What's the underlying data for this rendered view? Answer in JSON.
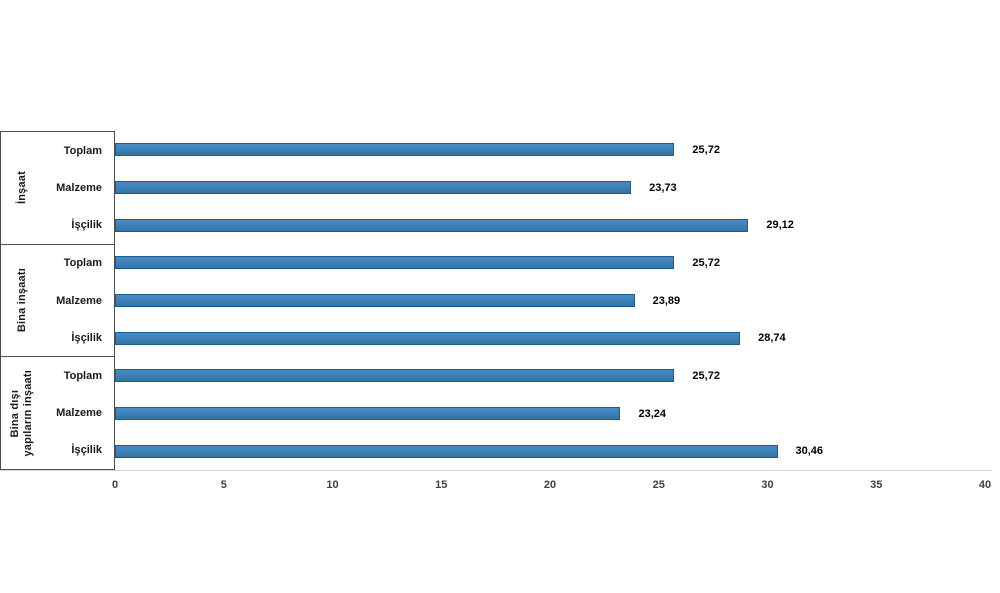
{
  "chart_data": {
    "type": "bar",
    "orientation": "horizontal",
    "title": "",
    "xlabel": "",
    "ylabel": "",
    "xlim": [
      0,
      40
    ],
    "grid": false,
    "legend": "none",
    "bar_color": "#3d82bb",
    "bar_border_color": "#1f5c8e",
    "x_ticks": [
      0,
      5,
      10,
      15,
      20,
      25,
      30,
      35,
      40
    ],
    "x_tick_labels": [
      "0",
      "5",
      "10",
      "15",
      "20",
      "25",
      "30",
      "35",
      "40"
    ],
    "groups": [
      {
        "label": "İnşaat",
        "rows": [
          {
            "label": "Toplam",
            "value": 25.72,
            "value_label": "25,72"
          },
          {
            "label": "Malzeme",
            "value": 23.73,
            "value_label": "23,73"
          },
          {
            "label": "İşçilik",
            "value": 29.12,
            "value_label": "29,12"
          }
        ]
      },
      {
        "label": "Bina inşaatı",
        "rows": [
          {
            "label": "Toplam",
            "value": 25.72,
            "value_label": "25,72"
          },
          {
            "label": "Malzeme",
            "value": 23.89,
            "value_label": "23,89"
          },
          {
            "label": "İşçilik",
            "value": 28.74,
            "value_label": "28,74"
          }
        ]
      },
      {
        "label": "Bina dışı\nyapıların inşaatı",
        "rows": [
          {
            "label": "Toplam",
            "value": 25.72,
            "value_label": "25,72"
          },
          {
            "label": "Malzeme",
            "value": 23.24,
            "value_label": "23,24"
          },
          {
            "label": "İşçilik",
            "value": 30.46,
            "value_label": "30,46"
          }
        ]
      }
    ]
  }
}
